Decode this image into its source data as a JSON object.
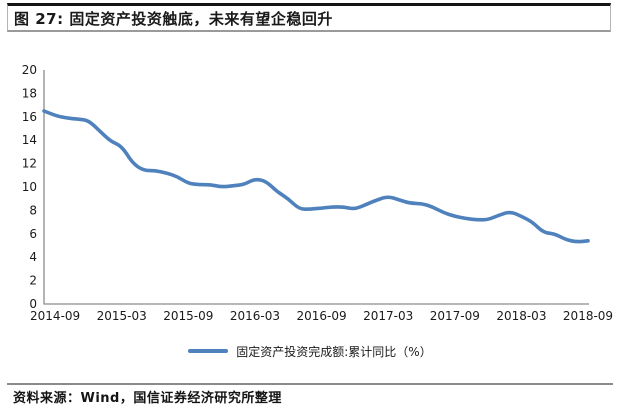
{
  "figure": {
    "title": "图 27: 固定资产投资触底，未来有望企稳回升",
    "source": "资料来源：Wind，国信证券经济研究所整理"
  },
  "colors": {
    "line": "#4F81BD",
    "axis": "#8C8C8C",
    "tick_text": "#1A1A1A"
  },
  "chart_data": {
    "type": "line",
    "title": "",
    "xlabel": "",
    "ylabel": "",
    "ylim": [
      0,
      20
    ],
    "y_ticks": [
      0,
      2,
      4,
      6,
      8,
      10,
      12,
      14,
      16,
      18,
      20
    ],
    "grid": false,
    "legend_position": "bottom",
    "x": [
      "2014-08",
      "2014-09",
      "2014-10",
      "2014-11",
      "2014-12",
      "2015-01",
      "2015-02",
      "2015-03",
      "2015-04",
      "2015-05",
      "2015-06",
      "2015-07",
      "2015-08",
      "2015-09",
      "2015-10",
      "2015-11",
      "2015-12",
      "2016-01",
      "2016-02",
      "2016-03",
      "2016-04",
      "2016-05",
      "2016-06",
      "2016-07",
      "2016-08",
      "2016-09",
      "2016-10",
      "2016-11",
      "2016-12",
      "2017-01",
      "2017-02",
      "2017-03",
      "2017-04",
      "2017-05",
      "2017-06",
      "2017-07",
      "2017-08",
      "2017-09",
      "2017-10",
      "2017-11",
      "2017-12",
      "2018-01",
      "2018-02",
      "2018-03",
      "2018-04",
      "2018-05",
      "2018-06",
      "2018-07",
      "2018-08",
      "2018-09"
    ],
    "x_tick_labels": [
      "2014-09",
      "2015-03",
      "2015-09",
      "2016-03",
      "2016-09",
      "2017-03",
      "2017-09",
      "2018-03",
      "2018-09"
    ],
    "series": [
      {
        "name": "固定资产投资完成额:累计同比（%）",
        "values": [
          16.5,
          16.1,
          15.9,
          15.8,
          15.7,
          14.8,
          13.9,
          13.5,
          12.0,
          11.4,
          11.4,
          11.2,
          10.9,
          10.3,
          10.2,
          10.2,
          10.0,
          10.1,
          10.2,
          10.7,
          10.5,
          9.6,
          9.0,
          8.1,
          8.1,
          8.2,
          8.3,
          8.3,
          8.1,
          8.5,
          8.9,
          9.2,
          8.9,
          8.6,
          8.6,
          8.3,
          7.8,
          7.5,
          7.3,
          7.2,
          7.2,
          7.6,
          7.9,
          7.5,
          7.0,
          6.1,
          6.0,
          5.5,
          5.3,
          5.4
        ]
      }
    ]
  }
}
